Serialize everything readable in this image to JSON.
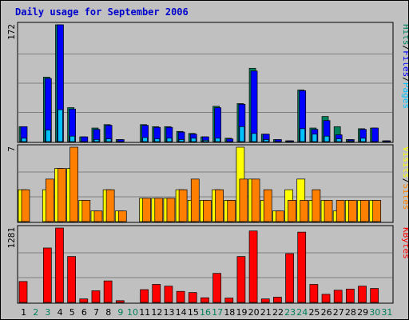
{
  "colors": {
    "frame": "#c0c0c0",
    "title": "#0000cc",
    "hits": "#00805c",
    "files": "#0000ff",
    "pages": "#00c0ff",
    "visits": "#ffff00",
    "sites": "#ff8000",
    "kbytes": "#ff0000",
    "weekend_label": "#00805c",
    "weekday_label": "#000000"
  },
  "chart_data": {
    "type": "bar",
    "title": "Daily usage for September 2006",
    "days": [
      "1",
      "2",
      "3",
      "4",
      "5",
      "6",
      "7",
      "8",
      "9",
      "10",
      "11",
      "12",
      "13",
      "14",
      "15",
      "16",
      "17",
      "18",
      "19",
      "20",
      "21",
      "22",
      "23",
      "24",
      "25",
      "26",
      "27",
      "28",
      "29",
      "30",
      "31"
    ],
    "weekend_days": [
      "2",
      "3",
      "9",
      "10",
      "16",
      "17",
      "23",
      "24",
      "30",
      "31"
    ],
    "panels": [
      {
        "name": "top",
        "ymax_label": "172",
        "ymax": 172,
        "legend": [
          {
            "text": "Pages",
            "color": "#00c0ff"
          },
          {
            "text": "/",
            "color": "#000000"
          },
          {
            "text": "Files",
            "color": "#0000ff"
          },
          {
            "text": "/",
            "color": "#000000"
          },
          {
            "text": "Hits",
            "color": "#00805c"
          }
        ],
        "series": [
          {
            "name": "Hits",
            "values": [
              22,
              0,
              95,
              172,
              50,
              7,
              20,
              25,
              3,
              0,
              25,
              22,
              22,
              15,
              12,
              7,
              52,
              5,
              56,
              108,
              11,
              3,
              1,
              76,
              20,
              37,
              22,
              3,
              19,
              20,
              1
            ]
          },
          {
            "name": "Files",
            "values": [
              22,
              0,
              93,
              172,
              48,
              7,
              18,
              24,
              3,
              0,
              24,
              21,
              21,
              14,
              11,
              7,
              50,
              4,
              55,
              104,
              11,
              3,
              1,
              75,
              18,
              31,
              10,
              3,
              18,
              20,
              1
            ]
          },
          {
            "name": "Pages",
            "values": [
              5,
              0,
              17,
              47,
              8,
              0,
              3,
              4,
              0,
              0,
              6,
              4,
              5,
              3,
              5,
              2,
              5,
              0,
              22,
              12,
              3,
              0,
              0,
              19,
              11,
              8,
              4,
              1,
              5,
              0,
              0
            ]
          }
        ]
      },
      {
        "name": "middle",
        "ymax_label": "7",
        "ymax": 7,
        "legend": [
          {
            "text": "Sites",
            "color": "#ff8000"
          },
          {
            "text": "/",
            "color": "#000000"
          },
          {
            "text": "Visits",
            "color": "#ffff00"
          }
        ],
        "series": [
          {
            "name": "Visits",
            "values": [
              3,
              0,
              3,
              5,
              5,
              2,
              1,
              3,
              1,
              0,
              2.2,
              2.2,
              2.2,
              3,
              2,
              2,
              3,
              2,
              7,
              4,
              2,
              1,
              3,
              4,
              2,
              2,
              1,
              2,
              2,
              2,
              0
            ]
          },
          {
            "name": "Sites",
            "values": [
              3,
              0,
              4,
              5,
              7,
              2,
              1,
              3,
              1,
              0,
              2.2,
              2.2,
              2.2,
              3,
              4,
              2,
              3,
              2,
              4,
              4,
              3,
              1,
              2,
              2,
              3,
              2,
              2,
              2,
              2,
              2,
              0
            ]
          }
        ]
      },
      {
        "name": "bottom",
        "ymax_label": "1281",
        "ymax": 1281,
        "legend": [
          {
            "text": "KBytes",
            "color": "#ff0000"
          }
        ],
        "series": [
          {
            "name": "KBytes",
            "values": [
              360,
              0,
              937,
              1281,
              790,
              60,
              200,
              370,
              30,
              0,
              220,
              310,
              280,
              190,
              170,
              80,
              500,
              75,
              790,
              1230,
              60,
              90,
              840,
              1210,
              310,
              140,
              210,
              230,
              280,
              240,
              0
            ]
          }
        ]
      }
    ]
  }
}
